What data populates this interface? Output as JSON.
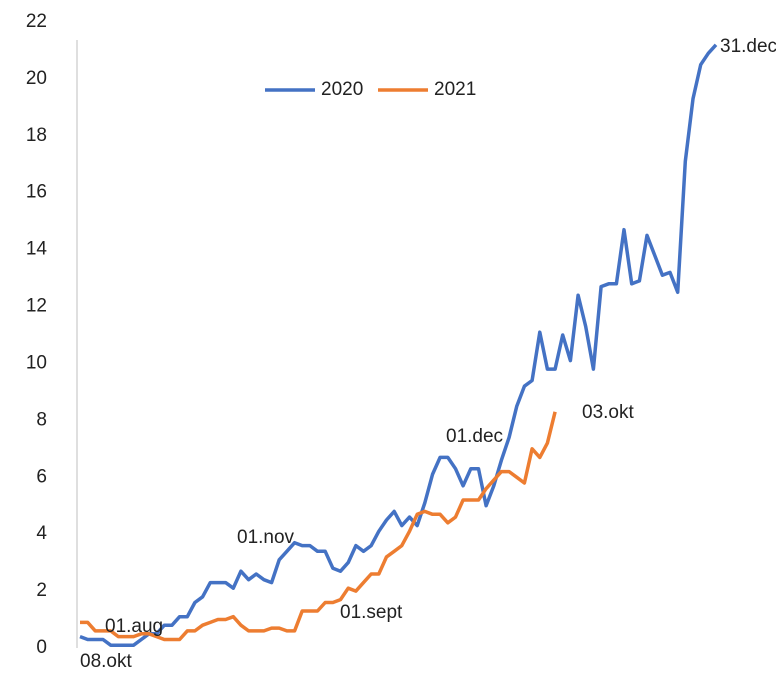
{
  "chart_data": {
    "type": "line",
    "categories": [
      null,
      null,
      null,
      null,
      null,
      null,
      null,
      null,
      null,
      null,
      null,
      null,
      null,
      null,
      null,
      null,
      null,
      null,
      null,
      null,
      null,
      null,
      null,
      null,
      null,
      null,
      null,
      null,
      null,
      null,
      null,
      null,
      null,
      null,
      null,
      null,
      null,
      null,
      null,
      null,
      null,
      null,
      null,
      null,
      null,
      null,
      null,
      null,
      null,
      null,
      null,
      null,
      null,
      null,
      null,
      null,
      null,
      null,
      null,
      null,
      null,
      null,
      null,
      null,
      null,
      null,
      null,
      null,
      null,
      null,
      null,
      null,
      null,
      null,
      null,
      null,
      null,
      null,
      null,
      null,
      null,
      null,
      null,
      null
    ],
    "series": [
      {
        "name": "2020",
        "color": "#4472c4",
        "values": [
          0.4,
          0.3,
          0.3,
          0.3,
          0.1,
          0.1,
          0.1,
          0.1,
          0.3,
          0.5,
          0.5,
          0.8,
          0.8,
          1.1,
          1.1,
          1.6,
          1.8,
          2.3,
          2.3,
          2.3,
          2.1,
          2.7,
          2.4,
          2.6,
          2.4,
          2.3,
          3.1,
          3.4,
          3.7,
          3.6,
          3.6,
          3.4,
          3.4,
          2.8,
          2.7,
          3.0,
          3.6,
          3.4,
          3.6,
          4.1,
          4.5,
          4.8,
          4.3,
          4.6,
          4.3,
          5.1,
          6.1,
          6.7,
          6.7,
          6.3,
          5.7,
          6.3,
          6.3,
          5.0,
          5.7,
          6.6,
          7.4,
          8.5,
          9.2,
          9.4,
          11.1,
          9.8,
          9.8,
          11.0,
          10.1,
          12.4,
          11.3,
          9.8,
          12.7,
          12.8,
          12.8,
          14.7,
          12.8,
          12.9,
          14.5,
          13.8,
          13.1,
          13.2,
          12.5,
          17.1,
          19.3,
          20.5,
          20.9,
          21.2
        ]
      },
      {
        "name": "2021",
        "color": "#ed7d31",
        "values": [
          0.9,
          0.9,
          0.6,
          0.6,
          0.6,
          0.4,
          0.4,
          0.4,
          0.5,
          0.5,
          0.4,
          0.3,
          0.3,
          0.3,
          0.6,
          0.6,
          0.8,
          0.9,
          1.0,
          1.0,
          1.1,
          0.8,
          0.6,
          0.6,
          0.6,
          0.7,
          0.7,
          0.6,
          0.6,
          1.3,
          1.3,
          1.3,
          1.6,
          1.6,
          1.7,
          2.1,
          2.0,
          2.3,
          2.6,
          2.6,
          3.2,
          3.4,
          3.6,
          4.1,
          4.7,
          4.8,
          4.7,
          4.7,
          4.4,
          4.6,
          5.2,
          5.2,
          5.2,
          5.6,
          5.9,
          6.2,
          6.2,
          6.0,
          5.8,
          7.0,
          6.7,
          7.2,
          8.3,
          null,
          null,
          null,
          null,
          null,
          null,
          null,
          null,
          null,
          null,
          null,
          null,
          null,
          null,
          null,
          null,
          null,
          null,
          null,
          null,
          null
        ]
      }
    ],
    "annotations": [
      "08.okt",
      "01.aug",
      "01.nov",
      "01.sept",
      "01.dec",
      "03.okt",
      "31.dec"
    ],
    "ylim": [
      0,
      22
    ],
    "yticks": [
      0,
      2,
      4,
      6,
      8,
      10,
      12,
      14,
      16,
      18,
      20,
      22
    ],
    "grid": false,
    "legend": "top"
  }
}
